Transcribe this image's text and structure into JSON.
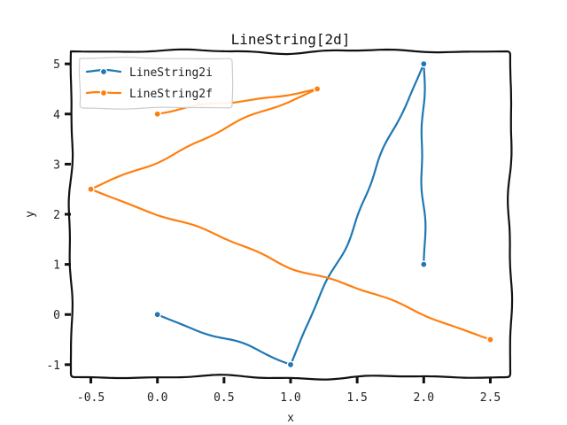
{
  "chart_data": {
    "type": "line",
    "title": "LineString[2d]",
    "xlabel": "x",
    "ylabel": "y",
    "xlim": [
      -0.65,
      2.65
    ],
    "ylim": [
      -1.25,
      5.25
    ],
    "xticks": [
      -0.5,
      0.0,
      0.5,
      1.0,
      1.5,
      2.0,
      2.5
    ],
    "xtick_labels": [
      "-0.5",
      "0.0",
      "0.5",
      "1.0",
      "1.5",
      "2.0",
      "2.5"
    ],
    "yticks": [
      -1,
      0,
      1,
      2,
      3,
      4,
      5
    ],
    "ytick_labels": [
      "-1",
      "0",
      "1",
      "2",
      "3",
      "4",
      "5"
    ],
    "grid": false,
    "legend_position": "top-left",
    "series": [
      {
        "name": "LineString2i",
        "color": "#1f77b4",
        "points": [
          [
            0,
            0
          ],
          [
            1,
            -1
          ],
          [
            2,
            5
          ],
          [
            2,
            1
          ]
        ]
      },
      {
        "name": "LineString2f",
        "color": "#ff7f0e",
        "points": [
          [
            0,
            4
          ],
          [
            1.2,
            4.5
          ],
          [
            -0.5,
            2.5
          ],
          [
            2.5,
            -0.5
          ]
        ]
      }
    ]
  }
}
